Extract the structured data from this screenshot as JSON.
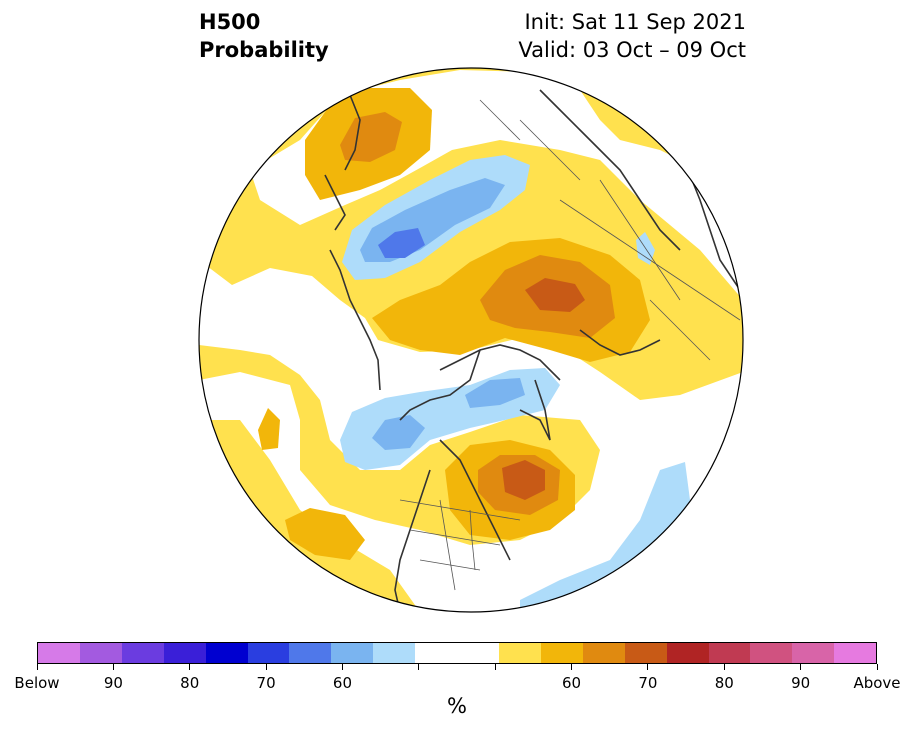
{
  "title": {
    "left_line1": "H500",
    "left_line2": "Probability",
    "right_line1": "Init: Sat 11 Sep 2021",
    "right_line2": "Valid: 03 Oct – 09 Oct"
  },
  "colorbar": {
    "colors": [
      "#d67ae8",
      "#a35ae0",
      "#6b3ce0",
      "#3a1fd8",
      "#0000d0",
      "#2a3ee0",
      "#4f78ea",
      "#7ab4f0",
      "#aedcfa",
      "#ffffff",
      "#ffffff",
      "#ffe14e",
      "#f2b60a",
      "#e08a10",
      "#c85a16",
      "#b02424",
      "#c03a52",
      "#d05280",
      "#d864a8",
      "#e67ae0"
    ],
    "tick_labels": [
      "Below",
      "90",
      "80",
      "70",
      "60",
      "",
      "",
      "60",
      "70",
      "80",
      "90",
      "Above"
    ],
    "unit": "%"
  },
  "map": {
    "projection": "polar stereographic (Northern Hemisphere)",
    "variable": "500 hPa height anomaly probability",
    "colors": {
      "above_60": "#ffe14e",
      "above_65": "#f2b60a",
      "above_70": "#e08a10",
      "above_75": "#c85a16",
      "below_60": "#aedcfa",
      "below_65": "#7ab4f0",
      "below_70": "#4f78ea",
      "coast": "#333333",
      "border": "#555555"
    }
  }
}
